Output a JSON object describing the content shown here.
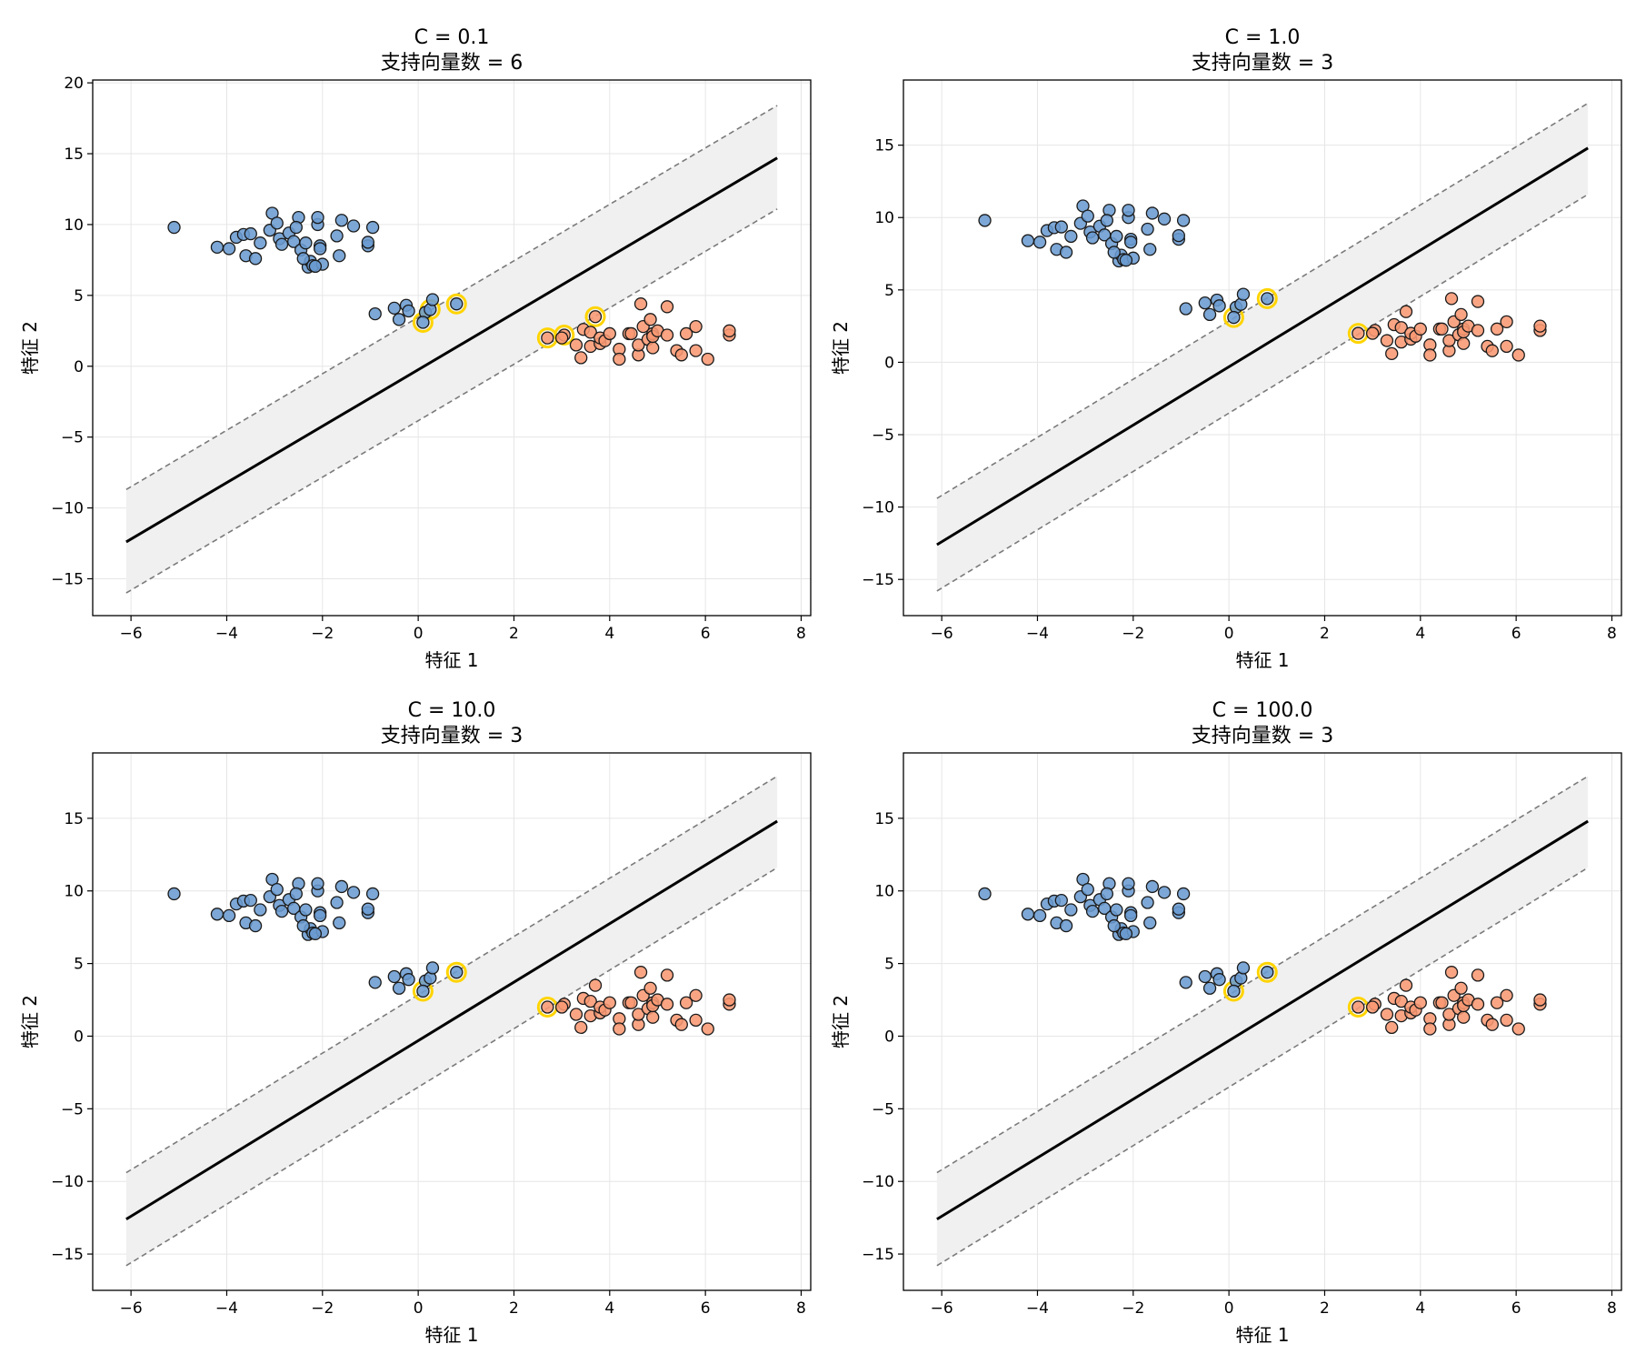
{
  "chart_data": [
    {
      "type": "scatter",
      "title": "C = 0.1",
      "subtitle": "支持向量数 = 6",
      "xlabel": "特征 1",
      "ylabel": "特征 2",
      "xlim": [
        -6.8,
        8.2
      ],
      "ylim": [
        -17.6,
        20.2
      ],
      "xticks": [
        -6,
        -4,
        -2,
        0,
        2,
        4,
        6,
        8
      ],
      "yticks": [
        -15,
        -10,
        -5,
        0,
        5,
        10,
        15,
        20
      ],
      "grid": true,
      "decision_boundary": {
        "x": [
          -6.1,
          7.5
        ],
        "y": [
          -12.4,
          14.7
        ]
      },
      "margin_upper": {
        "x": [
          -6.1,
          7.5
        ],
        "y": [
          -8.7,
          18.4
        ]
      },
      "margin_lower": {
        "x": [
          -6.1,
          7.5
        ],
        "y": [
          -16.0,
          11.1
        ]
      },
      "support_vectors": [
        [
          0.1,
          3.1
        ],
        [
          0.25,
          4.0
        ],
        [
          0.8,
          4.4
        ],
        [
          2.7,
          2.0
        ],
        [
          3.05,
          2.2
        ],
        [
          3.7,
          3.5
        ]
      ]
    },
    {
      "type": "scatter",
      "title": "C = 1.0",
      "subtitle": "支持向量数 = 3",
      "xlabel": "特征 1",
      "ylabel": "特征 2",
      "xlim": [
        -6.8,
        8.2
      ],
      "ylim": [
        -17.5,
        19.5
      ],
      "xticks": [
        -6,
        -4,
        -2,
        0,
        2,
        4,
        6,
        8
      ],
      "yticks": [
        -15,
        -10,
        -5,
        0,
        5,
        10,
        15
      ],
      "grid": true,
      "decision_boundary": {
        "x": [
          -6.1,
          7.5
        ],
        "y": [
          -12.6,
          14.8
        ]
      },
      "margin_upper": {
        "x": [
          -6.1,
          7.5
        ],
        "y": [
          -9.4,
          17.9
        ]
      },
      "margin_lower": {
        "x": [
          -6.1,
          7.5
        ],
        "y": [
          -15.8,
          11.6
        ]
      },
      "support_vectors": [
        [
          0.1,
          3.1
        ],
        [
          0.8,
          4.4
        ],
        [
          2.7,
          2.0
        ]
      ]
    },
    {
      "type": "scatter",
      "title": "C = 10.0",
      "subtitle": "支持向量数 = 3",
      "xlabel": "特征 1",
      "ylabel": "特征 2",
      "xlim": [
        -6.8,
        8.2
      ],
      "ylim": [
        -17.5,
        19.5
      ],
      "xticks": [
        -6,
        -4,
        -2,
        0,
        2,
        4,
        6,
        8
      ],
      "yticks": [
        -15,
        -10,
        -5,
        0,
        5,
        10,
        15
      ],
      "grid": true,
      "decision_boundary": {
        "x": [
          -6.1,
          7.5
        ],
        "y": [
          -12.6,
          14.8
        ]
      },
      "margin_upper": {
        "x": [
          -6.1,
          7.5
        ],
        "y": [
          -9.4,
          17.9
        ]
      },
      "margin_lower": {
        "x": [
          -6.1,
          7.5
        ],
        "y": [
          -15.8,
          11.6
        ]
      },
      "support_vectors": [
        [
          0.1,
          3.1
        ],
        [
          0.8,
          4.4
        ],
        [
          2.7,
          2.0
        ]
      ]
    },
    {
      "type": "scatter",
      "title": "C = 100.0",
      "subtitle": "支持向量数 = 3",
      "xlabel": "特征 1",
      "ylabel": "特征 2",
      "xlim": [
        -6.8,
        8.2
      ],
      "ylim": [
        -17.5,
        19.5
      ],
      "xticks": [
        -6,
        -4,
        -2,
        0,
        2,
        4,
        6,
        8
      ],
      "yticks": [
        -15,
        -10,
        -5,
        0,
        5,
        10,
        15
      ],
      "grid": true,
      "decision_boundary": {
        "x": [
          -6.1,
          7.5
        ],
        "y": [
          -12.6,
          14.8
        ]
      },
      "margin_upper": {
        "x": [
          -6.1,
          7.5
        ],
        "y": [
          -9.4,
          17.9
        ]
      },
      "margin_lower": {
        "x": [
          -6.1,
          7.5
        ],
        "y": [
          -15.8,
          11.6
        ]
      },
      "support_vectors": [
        [
          0.1,
          3.1
        ],
        [
          0.8,
          4.4
        ],
        [
          2.7,
          2.0
        ]
      ]
    }
  ],
  "points": {
    "class_a": [
      [
        -5.1,
        9.8
      ],
      [
        -4.2,
        8.4
      ],
      [
        -3.95,
        8.3
      ],
      [
        -3.8,
        9.1
      ],
      [
        -3.65,
        9.3
      ],
      [
        -3.5,
        9.35
      ],
      [
        -3.6,
        7.8
      ],
      [
        -3.4,
        7.6
      ],
      [
        -3.3,
        8.7
      ],
      [
        -3.1,
        9.6
      ],
      [
        -3.05,
        10.8
      ],
      [
        -2.95,
        10.1
      ],
      [
        -2.9,
        9.0
      ],
      [
        -2.85,
        8.6
      ],
      [
        -2.7,
        9.4
      ],
      [
        -2.6,
        8.8
      ],
      [
        -2.5,
        10.5
      ],
      [
        -2.55,
        9.8
      ],
      [
        -2.45,
        8.2
      ],
      [
        -2.35,
        8.7
      ],
      [
        -2.3,
        7.0
      ],
      [
        -2.25,
        7.4
      ],
      [
        -2.2,
        7.1
      ],
      [
        -2.1,
        10.0
      ],
      [
        -2.1,
        10.5
      ],
      [
        -2.05,
        8.5
      ],
      [
        -2.0,
        7.2
      ],
      [
        -2.05,
        8.3
      ],
      [
        -2.4,
        7.6
      ],
      [
        -2.15,
        7.05
      ],
      [
        -1.7,
        9.2
      ],
      [
        -1.6,
        10.3
      ],
      [
        -1.65,
        7.8
      ],
      [
        -1.35,
        9.9
      ],
      [
        -1.05,
        8.5
      ],
      [
        -1.05,
        8.75
      ],
      [
        -0.95,
        9.8
      ],
      [
        -0.9,
        3.7
      ],
      [
        -0.5,
        4.1
      ],
      [
        -0.4,
        3.3
      ],
      [
        -0.25,
        4.3
      ],
      [
        -0.2,
        3.9
      ],
      [
        0.15,
        3.8
      ],
      [
        0.1,
        3.1
      ],
      [
        0.25,
        4.0
      ],
      [
        0.3,
        4.7
      ],
      [
        0.8,
        4.4
      ]
    ],
    "class_b": [
      [
        2.7,
        2.0
      ],
      [
        3.05,
        2.2
      ],
      [
        3.0,
        2.0
      ],
      [
        3.3,
        1.5
      ],
      [
        3.4,
        0.6
      ],
      [
        3.45,
        2.6
      ],
      [
        3.6,
        2.4
      ],
      [
        3.6,
        1.4
      ],
      [
        3.7,
        3.5
      ],
      [
        3.8,
        1.6
      ],
      [
        3.8,
        2.0
      ],
      [
        3.9,
        1.8
      ],
      [
        4.0,
        2.3
      ],
      [
        4.2,
        1.2
      ],
      [
        4.2,
        0.5
      ],
      [
        4.4,
        2.3
      ],
      [
        4.45,
        2.3
      ],
      [
        4.6,
        0.8
      ],
      [
        4.6,
        1.5
      ],
      [
        4.7,
        2.8
      ],
      [
        4.65,
        4.4
      ],
      [
        4.8,
        1.9
      ],
      [
        4.85,
        3.3
      ],
      [
        4.9,
        2.3
      ],
      [
        4.9,
        1.3
      ],
      [
        4.9,
        2.1
      ],
      [
        5.0,
        2.5
      ],
      [
        5.2,
        4.2
      ],
      [
        5.2,
        2.2
      ],
      [
        5.4,
        1.1
      ],
      [
        5.5,
        0.8
      ],
      [
        5.6,
        2.3
      ],
      [
        5.8,
        2.8
      ],
      [
        5.8,
        1.1
      ],
      [
        6.05,
        0.5
      ],
      [
        6.5,
        2.2
      ],
      [
        6.5,
        2.5
      ]
    ]
  },
  "colors": {
    "class_a": "#6a9bd0",
    "class_b": "#f89873",
    "support_ring": "#ffd400",
    "decision_line": "#000000",
    "margin_line": "#7a7a7a",
    "margin_fill": "#f0f0f0",
    "grid": "#e6e6e6"
  }
}
